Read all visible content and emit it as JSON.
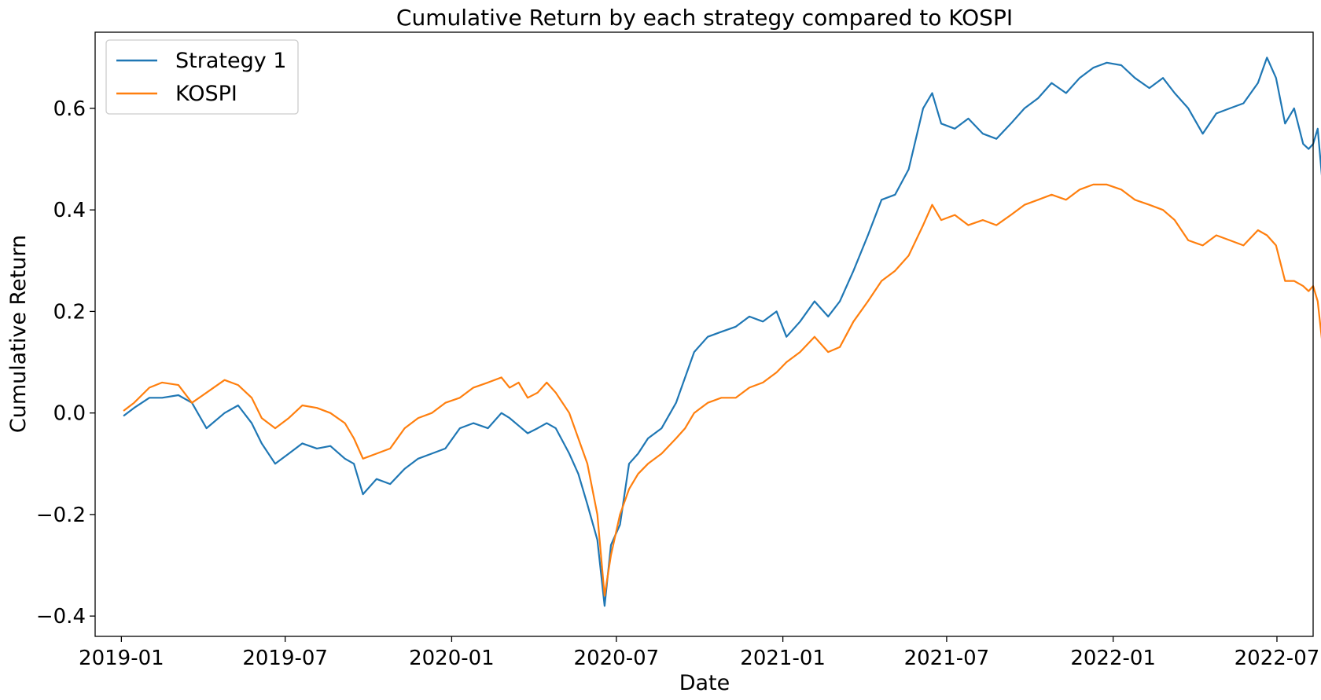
{
  "chart_data": {
    "type": "line",
    "title": "Cumulative Return by each strategy compared to KOSPI",
    "xlabel": "Date",
    "ylabel": "Cumulative Return",
    "xlim": [
      "2018-12-03",
      "2022-08-10"
    ],
    "ylim": [
      -0.44,
      0.75
    ],
    "x_ticks": [
      "2019-01",
      "2019-07",
      "2020-01",
      "2020-07",
      "2021-01",
      "2021-07",
      "2022-01",
      "2022-07"
    ],
    "x_tick_dates": [
      "2019-01-01",
      "2019-07-01",
      "2020-01-01",
      "2020-07-01",
      "2021-01-01",
      "2021-07-01",
      "2022-01-01",
      "2022-07-01"
    ],
    "y_ticks": [
      -0.4,
      -0.2,
      0.0,
      0.2,
      0.4,
      0.6
    ],
    "y_tick_labels": [
      "−0.4",
      "−0.2",
      "0.0",
      "0.2",
      "0.4",
      "0.6"
    ],
    "grid": false,
    "legend_position": "top-left",
    "series": [
      {
        "name": "Strategy 1",
        "color": "#1f77b4",
        "points": [
          [
            "2019-01-04",
            -0.005
          ],
          [
            "2019-01-15",
            0.01
          ],
          [
            "2019-02-01",
            0.03
          ],
          [
            "2019-02-15",
            0.03
          ],
          [
            "2019-03-05",
            0.035
          ],
          [
            "2019-03-20",
            0.02
          ],
          [
            "2019-04-05",
            -0.03
          ],
          [
            "2019-04-25",
            0.0
          ],
          [
            "2019-05-10",
            0.015
          ],
          [
            "2019-05-25",
            -0.02
          ],
          [
            "2019-06-05",
            -0.06
          ],
          [
            "2019-06-20",
            -0.1
          ],
          [
            "2019-07-05",
            -0.08
          ],
          [
            "2019-07-20",
            -0.06
          ],
          [
            "2019-08-05",
            -0.07
          ],
          [
            "2019-08-20",
            -0.065
          ],
          [
            "2019-09-05",
            -0.09
          ],
          [
            "2019-09-15",
            -0.1
          ],
          [
            "2019-09-25",
            -0.16
          ],
          [
            "2019-10-10",
            -0.13
          ],
          [
            "2019-10-25",
            -0.14
          ],
          [
            "2019-11-10",
            -0.11
          ],
          [
            "2019-11-25",
            -0.09
          ],
          [
            "2019-12-10",
            -0.08
          ],
          [
            "2019-12-25",
            -0.07
          ],
          [
            "2020-01-10",
            -0.03
          ],
          [
            "2020-01-25",
            -0.02
          ],
          [
            "2020-02-10",
            -0.03
          ],
          [
            "2020-02-25",
            0.0
          ],
          [
            "2020-03-05",
            -0.01
          ],
          [
            "2020-03-15",
            -0.025
          ],
          [
            "2020-03-25",
            -0.04
          ],
          [
            "2020-04-05",
            -0.03
          ],
          [
            "2020-04-15",
            -0.02
          ],
          [
            "2020-04-25",
            -0.03
          ],
          [
            "2020-05-10",
            -0.08
          ],
          [
            "2020-05-20",
            -0.12
          ],
          [
            "2020-05-30",
            -0.18
          ],
          [
            "2020-06-10",
            -0.25
          ],
          [
            "2020-06-18",
            -0.38
          ],
          [
            "2020-06-25",
            -0.26
          ],
          [
            "2020-07-05",
            -0.22
          ],
          [
            "2020-07-15",
            -0.1
          ],
          [
            "2020-07-25",
            -0.08
          ],
          [
            "2020-08-05",
            -0.05
          ],
          [
            "2020-08-20",
            -0.03
          ],
          [
            "2020-09-05",
            0.02
          ],
          [
            "2020-09-15",
            0.07
          ],
          [
            "2020-09-25",
            0.12
          ],
          [
            "2020-10-10",
            0.15
          ],
          [
            "2020-10-25",
            0.16
          ],
          [
            "2020-11-10",
            0.17
          ],
          [
            "2020-11-25",
            0.19
          ],
          [
            "2020-12-10",
            0.18
          ],
          [
            "2020-12-25",
            0.2
          ],
          [
            "2021-01-05",
            0.15
          ],
          [
            "2021-01-20",
            0.18
          ],
          [
            "2021-02-05",
            0.22
          ],
          [
            "2021-02-20",
            0.19
          ],
          [
            "2021-03-05",
            0.22
          ],
          [
            "2021-03-20",
            0.28
          ],
          [
            "2021-04-05",
            0.35
          ],
          [
            "2021-04-20",
            0.42
          ],
          [
            "2021-05-05",
            0.43
          ],
          [
            "2021-05-20",
            0.48
          ],
          [
            "2021-06-05",
            0.6
          ],
          [
            "2021-06-15",
            0.63
          ],
          [
            "2021-06-25",
            0.57
          ],
          [
            "2021-07-10",
            0.56
          ],
          [
            "2021-07-25",
            0.58
          ],
          [
            "2021-08-10",
            0.55
          ],
          [
            "2021-08-25",
            0.54
          ],
          [
            "2021-09-10",
            0.57
          ],
          [
            "2021-09-25",
            0.6
          ],
          [
            "2021-10-10",
            0.62
          ],
          [
            "2021-10-25",
            0.65
          ],
          [
            "2021-11-10",
            0.63
          ],
          [
            "2021-11-25",
            0.66
          ],
          [
            "2021-12-10",
            0.68
          ],
          [
            "2021-12-25",
            0.69
          ],
          [
            "2022-01-10",
            0.685
          ],
          [
            "2022-01-25",
            0.66
          ],
          [
            "2022-02-10",
            0.64
          ],
          [
            "2022-02-25",
            0.66
          ],
          [
            "2022-03-10",
            0.63
          ],
          [
            "2022-03-25",
            0.6
          ],
          [
            "2022-04-10",
            0.55
          ],
          [
            "2022-04-25",
            0.59
          ],
          [
            "2022-05-10",
            0.6
          ],
          [
            "2022-05-25",
            0.61
          ],
          [
            "2022-06-10",
            0.65
          ],
          [
            "2022-06-20",
            0.7
          ],
          [
            "2022-06-30",
            0.66
          ],
          [
            "2022-07-10",
            0.57
          ],
          [
            "2022-07-20",
            0.6
          ],
          [
            "2022-07-30",
            0.53
          ],
          [
            "2022-08-05",
            0.52
          ],
          [
            "2022-08-10",
            0.53
          ],
          [
            "2022-08-15",
            0.56
          ],
          [
            "2022-08-20",
            0.46
          ],
          [
            "2022-08-25",
            0.49
          ],
          [
            "2022-08-28",
            0.45
          ]
        ]
      },
      {
        "name": "KOSPI",
        "color": "#ff7f0e",
        "points": [
          [
            "2019-01-04",
            0.005
          ],
          [
            "2019-01-15",
            0.02
          ],
          [
            "2019-02-01",
            0.05
          ],
          [
            "2019-02-15",
            0.06
          ],
          [
            "2019-03-05",
            0.055
          ],
          [
            "2019-03-20",
            0.02
          ],
          [
            "2019-04-05",
            0.04
          ],
          [
            "2019-04-25",
            0.065
          ],
          [
            "2019-05-10",
            0.055
          ],
          [
            "2019-05-25",
            0.03
          ],
          [
            "2019-06-05",
            -0.01
          ],
          [
            "2019-06-20",
            -0.03
          ],
          [
            "2019-07-05",
            -0.01
          ],
          [
            "2019-07-20",
            0.015
          ],
          [
            "2019-08-05",
            0.01
          ],
          [
            "2019-08-20",
            0.0
          ],
          [
            "2019-09-05",
            -0.02
          ],
          [
            "2019-09-15",
            -0.05
          ],
          [
            "2019-09-25",
            -0.09
          ],
          [
            "2019-10-10",
            -0.08
          ],
          [
            "2019-10-25",
            -0.07
          ],
          [
            "2019-11-10",
            -0.03
          ],
          [
            "2019-11-25",
            -0.01
          ],
          [
            "2019-12-10",
            0.0
          ],
          [
            "2019-12-25",
            0.02
          ],
          [
            "2020-01-10",
            0.03
          ],
          [
            "2020-01-25",
            0.05
          ],
          [
            "2020-02-10",
            0.06
          ],
          [
            "2020-02-25",
            0.07
          ],
          [
            "2020-03-05",
            0.05
          ],
          [
            "2020-03-15",
            0.06
          ],
          [
            "2020-03-25",
            0.03
          ],
          [
            "2020-04-05",
            0.04
          ],
          [
            "2020-04-15",
            0.06
          ],
          [
            "2020-04-25",
            0.04
          ],
          [
            "2020-05-10",
            0.0
          ],
          [
            "2020-05-20",
            -0.05
          ],
          [
            "2020-05-30",
            -0.1
          ],
          [
            "2020-06-10",
            -0.2
          ],
          [
            "2020-06-18",
            -0.36
          ],
          [
            "2020-06-25",
            -0.28
          ],
          [
            "2020-07-05",
            -0.2
          ],
          [
            "2020-07-15",
            -0.15
          ],
          [
            "2020-07-25",
            -0.12
          ],
          [
            "2020-08-05",
            -0.1
          ],
          [
            "2020-08-20",
            -0.08
          ],
          [
            "2020-09-05",
            -0.05
          ],
          [
            "2020-09-15",
            -0.03
          ],
          [
            "2020-09-25",
            0.0
          ],
          [
            "2020-10-10",
            0.02
          ],
          [
            "2020-10-25",
            0.03
          ],
          [
            "2020-11-10",
            0.03
          ],
          [
            "2020-11-25",
            0.05
          ],
          [
            "2020-12-10",
            0.06
          ],
          [
            "2020-12-25",
            0.08
          ],
          [
            "2021-01-05",
            0.1
          ],
          [
            "2021-01-20",
            0.12
          ],
          [
            "2021-02-05",
            0.15
          ],
          [
            "2021-02-20",
            0.12
          ],
          [
            "2021-03-05",
            0.13
          ],
          [
            "2021-03-20",
            0.18
          ],
          [
            "2021-04-05",
            0.22
          ],
          [
            "2021-04-20",
            0.26
          ],
          [
            "2021-05-05",
            0.28
          ],
          [
            "2021-05-20",
            0.31
          ],
          [
            "2021-06-05",
            0.37
          ],
          [
            "2021-06-15",
            0.41
          ],
          [
            "2021-06-25",
            0.38
          ],
          [
            "2021-07-10",
            0.39
          ],
          [
            "2021-07-25",
            0.37
          ],
          [
            "2021-08-10",
            0.38
          ],
          [
            "2021-08-25",
            0.37
          ],
          [
            "2021-09-10",
            0.39
          ],
          [
            "2021-09-25",
            0.41
          ],
          [
            "2021-10-10",
            0.42
          ],
          [
            "2021-10-25",
            0.43
          ],
          [
            "2021-11-10",
            0.42
          ],
          [
            "2021-11-25",
            0.44
          ],
          [
            "2021-12-10",
            0.45
          ],
          [
            "2021-12-25",
            0.45
          ],
          [
            "2022-01-10",
            0.44
          ],
          [
            "2022-01-25",
            0.42
          ],
          [
            "2022-02-10",
            0.41
          ],
          [
            "2022-02-25",
            0.4
          ],
          [
            "2022-03-10",
            0.38
          ],
          [
            "2022-03-25",
            0.34
          ],
          [
            "2022-04-10",
            0.33
          ],
          [
            "2022-04-25",
            0.35
          ],
          [
            "2022-05-10",
            0.34
          ],
          [
            "2022-05-25",
            0.33
          ],
          [
            "2022-06-10",
            0.36
          ],
          [
            "2022-06-20",
            0.35
          ],
          [
            "2022-06-30",
            0.33
          ],
          [
            "2022-07-10",
            0.26
          ],
          [
            "2022-07-20",
            0.26
          ],
          [
            "2022-07-30",
            0.25
          ],
          [
            "2022-08-05",
            0.24
          ],
          [
            "2022-08-10",
            0.25
          ],
          [
            "2022-08-15",
            0.22
          ],
          [
            "2022-08-20",
            0.14
          ],
          [
            "2022-08-25",
            0.12
          ],
          [
            "2022-08-28",
            0.11
          ]
        ]
      }
    ]
  }
}
